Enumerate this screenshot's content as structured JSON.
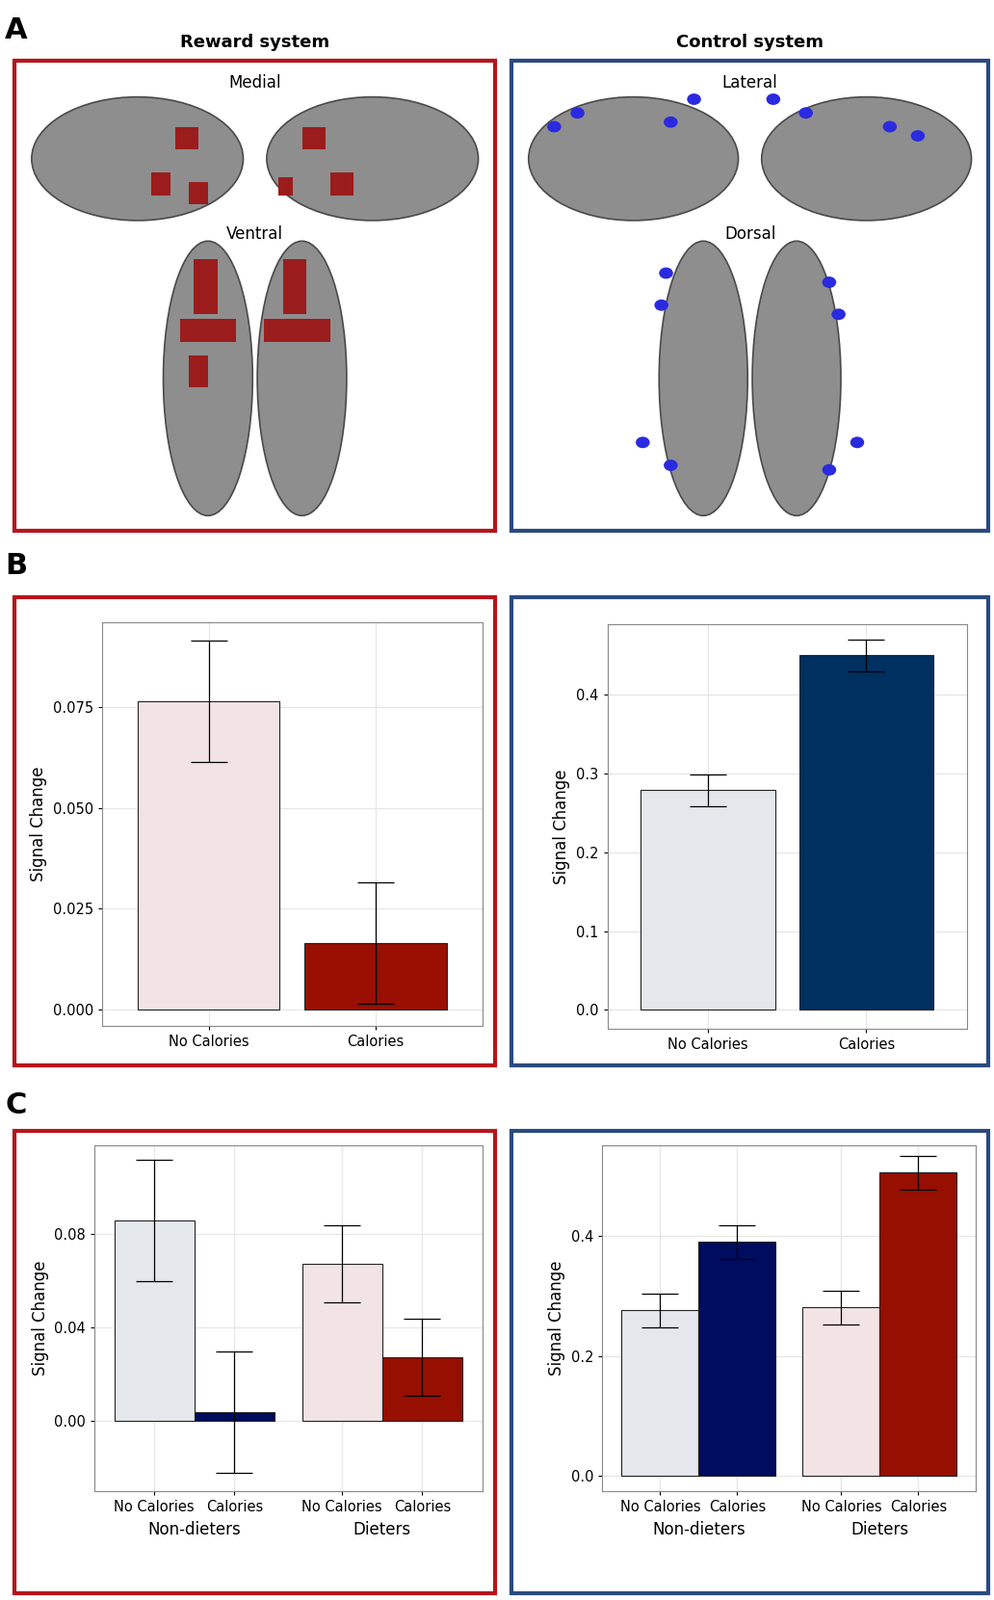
{
  "panel_labels": [
    "A",
    "B",
    "C"
  ],
  "panel_a": {
    "reward": {
      "title": "Reward system",
      "views": [
        "Medial",
        "Ventral"
      ]
    },
    "control": {
      "title": "Control system",
      "views": [
        "Lateral",
        "Dorsal"
      ]
    }
  },
  "chart_data": [
    {
      "type": "bar",
      "categories": [
        "No Calories",
        "Calories"
      ],
      "values": [
        0.0765,
        0.0165
      ],
      "errors": [
        0.015,
        0.015
      ],
      "colors": [
        "#f2e4e4",
        "#990f02"
      ],
      "y_label": "Signal Change",
      "ylim": [
        -0.004,
        0.096
      ],
      "yticks": [
        {
          "value": 0,
          "label": "0.000"
        },
        {
          "value": 0.025,
          "label": "0.025"
        },
        {
          "value": 0.05,
          "label": "0.050"
        },
        {
          "value": 0.075,
          "label": "0.075"
        }
      ],
      "grid": true
    },
    {
      "type": "bar",
      "categories": [
        "No Calories",
        "Calories"
      ],
      "values": [
        0.279,
        0.45
      ],
      "errors": [
        0.02,
        0.02
      ],
      "colors": [
        "#e4e8ec",
        "#003060"
      ],
      "y_label": "Signal Change",
      "ylim": [
        -0.024,
        0.49
      ],
      "yticks": [
        {
          "value": 0,
          "label": "0.0"
        },
        {
          "value": 0.1,
          "label": "0.1"
        },
        {
          "value": 0.2,
          "label": "0.2"
        },
        {
          "value": 0.3,
          "label": "0.3"
        },
        {
          "value": 0.4,
          "label": "0.4"
        }
      ],
      "grid": true
    },
    {
      "type": "bar",
      "categories": [
        "No Calories",
        "Calories",
        "No Calories",
        "Calories"
      ],
      "x_groups": [
        "Non-dieters",
        "Dieters"
      ],
      "values": [
        0.086,
        0.004,
        0.0675,
        0.0275
      ],
      "errors": [
        0.026,
        0.026,
        0.0165,
        0.0165
      ],
      "colors": [
        "#e4e8ec",
        "#000c5e",
        "#f2e4e4",
        "#960f00"
      ],
      "y_label": "Signal Change",
      "ylim": [
        -0.03,
        0.118
      ],
      "yticks": [
        {
          "value": 0,
          "label": "0.00"
        },
        {
          "value": 0.04,
          "label": "0.04"
        },
        {
          "value": 0.08,
          "label": "0.08"
        }
      ],
      "grid": true
    },
    {
      "type": "bar",
      "categories": [
        "No Calories",
        "Calories",
        "No Calories",
        "Calories"
      ],
      "x_groups": [
        "Non-dieters",
        "Dieters"
      ],
      "values": [
        0.276,
        0.39,
        0.281,
        0.505
      ],
      "errors": [
        0.028,
        0.028,
        0.028,
        0.028
      ],
      "colors": [
        "#e4e8ec",
        "#000c5e",
        "#f2e4e4",
        "#960f00"
      ],
      "y_label": "Signal Change",
      "ylim": [
        -0.025,
        0.55
      ],
      "yticks": [
        {
          "value": 0,
          "label": "0.0"
        },
        {
          "value": 0.2,
          "label": "0.2"
        },
        {
          "value": 0.4,
          "label": "0.4"
        }
      ],
      "grid": true
    }
  ]
}
